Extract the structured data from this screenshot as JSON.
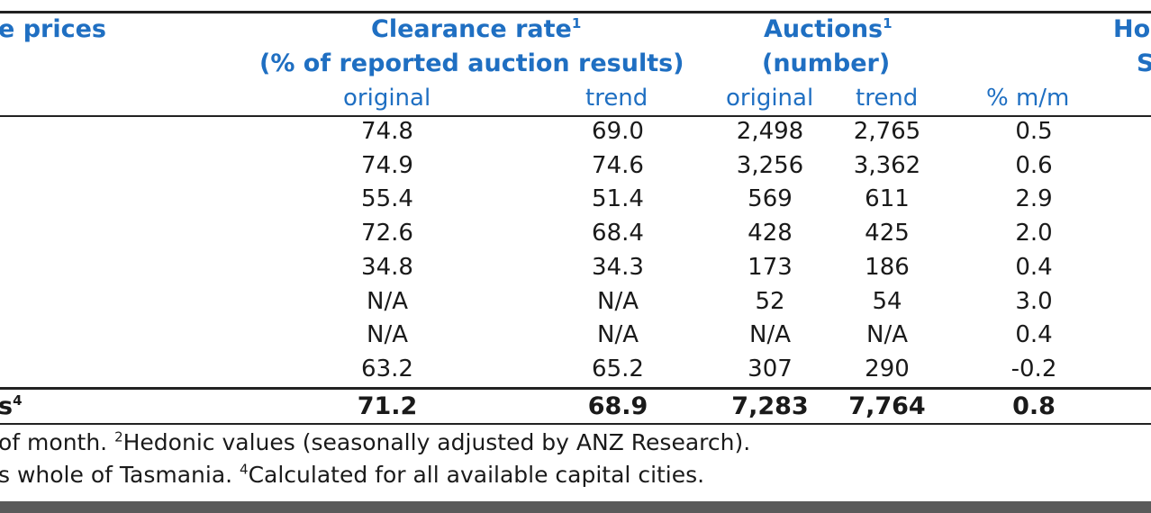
{
  "headers": {
    "prices": "e prices",
    "clearance_title": "Clearance rate",
    "clearance_sup": "1",
    "clearance_sub": "(% of reported auction results)",
    "auctions_title": "Auctions",
    "auctions_sup": "1",
    "auctions_sub": "(number)",
    "right_top": "Ho",
    "right_bottom": "S"
  },
  "subheaders": {
    "clearance_original": "original",
    "clearance_trend": "trend",
    "auctions_original": "original",
    "auctions_trend": "trend",
    "pct_mm": "% m/m"
  },
  "rows": [
    {
      "label": "",
      "cr_orig": "74.8",
      "cr_trend": "69.0",
      "au_orig": "2,498",
      "au_trend": "2,765",
      "pct": "0.5"
    },
    {
      "label": "",
      "cr_orig": "74.9",
      "cr_trend": "74.6",
      "au_orig": "3,256",
      "au_trend": "3,362",
      "pct": "0.6"
    },
    {
      "label": "",
      "cr_orig": "55.4",
      "cr_trend": "51.4",
      "au_orig": "569",
      "au_trend": "611",
      "pct": "2.9"
    },
    {
      "label": "",
      "cr_orig": "72.6",
      "cr_trend": "68.4",
      "au_orig": "428",
      "au_trend": "425",
      "pct": "2.0"
    },
    {
      "label": "",
      "cr_orig": "34.8",
      "cr_trend": "34.3",
      "au_orig": "173",
      "au_trend": "186",
      "pct": "0.4"
    },
    {
      "label": "",
      "cr_orig": "N/A",
      "cr_trend": "N/A",
      "au_orig": "52",
      "au_trend": "54",
      "pct": "3.0"
    },
    {
      "label": "",
      "cr_orig": "N/A",
      "cr_trend": "N/A",
      "au_orig": "N/A",
      "au_trend": "N/A",
      "pct": "0.4"
    },
    {
      "label": "",
      "cr_orig": "63.2",
      "cr_trend": "65.2",
      "au_orig": "307",
      "au_trend": "290",
      "pct": "-0.2"
    }
  ],
  "total": {
    "label": "s",
    "label_sup": "4",
    "cr_orig": "71.2",
    "cr_trend": "68.9",
    "au_orig": "7,283",
    "au_trend": "7,764",
    "pct": "0.8"
  },
  "notes": {
    "line1_a": "of month. ",
    "line1_sup": "2",
    "line1_b": "Hedonic values (seasonally adjusted by ANZ Research).",
    "line2_a": "s whole of Tasmania. ",
    "line2_sup": "4",
    "line2_b": "Calculated for all available capital cities."
  }
}
